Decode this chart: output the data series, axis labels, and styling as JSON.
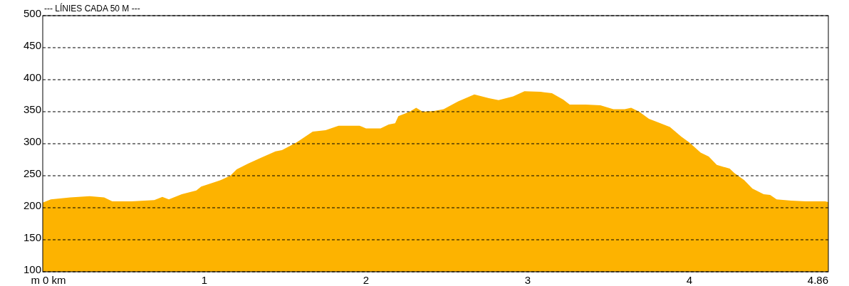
{
  "chart_data": {
    "type": "area",
    "title": "--- LÍNIES CADA 50 M ---",
    "ylabel": "m",
    "x": [
      0,
      0.05,
      0.17,
      0.29,
      0.38,
      0.43,
      0.55,
      0.69,
      0.74,
      0.78,
      0.86,
      0.95,
      0.98,
      1.1,
      1.16,
      1.2,
      1.27,
      1.35,
      1.44,
      1.48,
      1.57,
      1.67,
      1.75,
      1.83,
      1.96,
      2.0,
      2.09,
      2.14,
      2.18,
      2.2,
      2.27,
      2.31,
      2.35,
      2.42,
      2.48,
      2.57,
      2.67,
      2.76,
      2.82,
      2.91,
      2.98,
      3.08,
      3.15,
      3.22,
      3.26,
      3.36,
      3.45,
      3.53,
      3.6,
      3.64,
      3.69,
      3.75,
      3.81,
      3.88,
      3.95,
      4.0,
      4.07,
      4.12,
      4.17,
      4.25,
      4.28,
      4.34,
      4.39,
      4.46,
      4.5,
      4.54,
      4.63,
      4.72,
      4.84,
      4.86
    ],
    "series": [
      {
        "color": "#fdb300",
        "values": [
          208,
          213,
          216,
          218,
          216,
          210,
          210,
          212,
          217,
          213,
          221,
          227,
          233,
          243,
          250,
          260,
          269,
          278,
          288,
          290,
          302,
          319,
          321,
          328,
          328,
          324,
          324,
          330,
          332,
          343,
          350,
          356,
          350,
          351,
          354,
          366,
          377,
          371,
          368,
          374,
          382,
          381,
          379,
          369,
          361,
          361,
          360,
          354,
          354,
          356,
          350,
          339,
          333,
          326,
          311,
          302,
          286,
          280,
          267,
          261,
          254,
          243,
          230,
          221,
          220,
          213,
          211,
          210,
          210,
          209
        ]
      }
    ],
    "xlim": [
      0,
      4.86
    ],
    "xticks": [
      {
        "value": 0,
        "label": "0 km"
      },
      1,
      2,
      3,
      4,
      4.86
    ],
    "ylim": [
      100,
      500
    ],
    "yticks": [
      100,
      150,
      200,
      250,
      300,
      350,
      400,
      450,
      500
    ],
    "grid": "y",
    "line_style": "dashed"
  }
}
